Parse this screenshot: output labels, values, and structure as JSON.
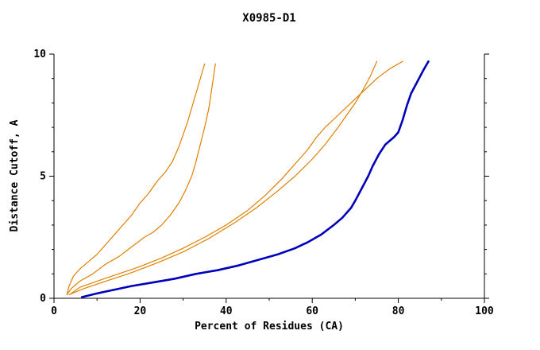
{
  "chart_data": {
    "type": "line",
    "title": "X0985-D1",
    "xlabel": "Percent of Residues (CA)",
    "ylabel": "Distance Cutoff, A",
    "xlim": [
      0,
      100
    ],
    "ylim": [
      0,
      10
    ],
    "x_ticks": [
      0,
      20,
      40,
      60,
      80,
      100
    ],
    "x_ticks_minor": [
      10,
      30,
      50,
      70,
      90
    ],
    "y_ticks_major": [
      0,
      5,
      10
    ],
    "y_ticks_minor": [
      1,
      2,
      3,
      4,
      6,
      7,
      8,
      9
    ],
    "grid": false,
    "legend": "none",
    "colors": {
      "model_curve": "#e08000",
      "highlight_curve": "#0000bb",
      "axis": "#000000"
    },
    "series": [
      {
        "name": "orange-curve-1",
        "color": "#e08000",
        "width": 1.2,
        "points": [
          [
            3,
            0.15
          ],
          [
            3.5,
            0.5
          ],
          [
            4.5,
            0.9
          ],
          [
            6,
            1.2
          ],
          [
            8,
            1.5
          ],
          [
            10,
            1.8
          ],
          [
            12,
            2.2
          ],
          [
            14,
            2.6
          ],
          [
            16,
            3.0
          ],
          [
            18,
            3.4
          ],
          [
            20,
            3.9
          ],
          [
            22,
            4.3
          ],
          [
            24,
            4.8
          ],
          [
            26,
            5.2
          ],
          [
            27.5,
            5.6
          ],
          [
            29,
            6.2
          ],
          [
            30,
            6.7
          ],
          [
            31,
            7.2
          ],
          [
            32,
            7.8
          ],
          [
            33,
            8.4
          ],
          [
            34,
            9.0
          ],
          [
            35,
            9.6
          ]
        ]
      },
      {
        "name": "orange-curve-2",
        "color": "#e08000",
        "width": 1.2,
        "points": [
          [
            3,
            0.15
          ],
          [
            4,
            0.4
          ],
          [
            6,
            0.7
          ],
          [
            9,
            1.0
          ],
          [
            12,
            1.4
          ],
          [
            15,
            1.7
          ],
          [
            18,
            2.1
          ],
          [
            21,
            2.5
          ],
          [
            23,
            2.7
          ],
          [
            25,
            3.0
          ],
          [
            27,
            3.4
          ],
          [
            29,
            3.9
          ],
          [
            30.5,
            4.4
          ],
          [
            32,
            5.0
          ],
          [
            33,
            5.6
          ],
          [
            34,
            6.3
          ],
          [
            35,
            7.0
          ],
          [
            36,
            7.8
          ],
          [
            36.5,
            8.4
          ],
          [
            37,
            9.0
          ],
          [
            37.5,
            9.6
          ]
        ]
      },
      {
        "name": "orange-curve-3",
        "color": "#e08000",
        "width": 1.2,
        "points": [
          [
            3.5,
            0.15
          ],
          [
            7,
            0.4
          ],
          [
            12,
            0.7
          ],
          [
            18,
            1.05
          ],
          [
            24,
            1.45
          ],
          [
            30,
            1.9
          ],
          [
            36,
            2.45
          ],
          [
            42,
            3.1
          ],
          [
            47,
            3.7
          ],
          [
            52,
            4.4
          ],
          [
            56,
            5.0
          ],
          [
            60,
            5.7
          ],
          [
            63,
            6.3
          ],
          [
            66,
            7.0
          ],
          [
            68,
            7.5
          ],
          [
            70,
            8.0
          ],
          [
            72,
            8.6
          ],
          [
            73.5,
            9.1
          ],
          [
            75,
            9.7
          ]
        ]
      },
      {
        "name": "orange-curve-4",
        "color": "#e08000",
        "width": 1.2,
        "points": [
          [
            4,
            0.2
          ],
          [
            6,
            0.45
          ],
          [
            10,
            0.7
          ],
          [
            15,
            1.0
          ],
          [
            20,
            1.3
          ],
          [
            25,
            1.65
          ],
          [
            30,
            2.05
          ],
          [
            35,
            2.5
          ],
          [
            40,
            3.0
          ],
          [
            45,
            3.6
          ],
          [
            49,
            4.2
          ],
          [
            53,
            4.9
          ],
          [
            56,
            5.5
          ],
          [
            59,
            6.1
          ],
          [
            61,
            6.6
          ],
          [
            63,
            7.0
          ],
          [
            66,
            7.5
          ],
          [
            69,
            8.0
          ],
          [
            72,
            8.5
          ],
          [
            75,
            9.0
          ],
          [
            78,
            9.4
          ],
          [
            81,
            9.7
          ]
        ]
      },
      {
        "name": "blue-highlight-curve",
        "color": "#0000bb",
        "width": 2.6,
        "points": [
          [
            6.5,
            0.05
          ],
          [
            10,
            0.2
          ],
          [
            14,
            0.35
          ],
          [
            18,
            0.5
          ],
          [
            23,
            0.65
          ],
          [
            28,
            0.8
          ],
          [
            33,
            1.0
          ],
          [
            38,
            1.15
          ],
          [
            43,
            1.35
          ],
          [
            48,
            1.6
          ],
          [
            52,
            1.8
          ],
          [
            56,
            2.05
          ],
          [
            59,
            2.3
          ],
          [
            62,
            2.6
          ],
          [
            65,
            3.0
          ],
          [
            67,
            3.3
          ],
          [
            69,
            3.7
          ],
          [
            70,
            4.0
          ],
          [
            71.5,
            4.5
          ],
          [
            73,
            5.0
          ],
          [
            74,
            5.4
          ],
          [
            75.5,
            5.9
          ],
          [
            77,
            6.3
          ],
          [
            79,
            6.6
          ],
          [
            80,
            6.8
          ],
          [
            81,
            7.3
          ],
          [
            82,
            7.9
          ],
          [
            83,
            8.4
          ],
          [
            84.5,
            8.9
          ],
          [
            86,
            9.4
          ],
          [
            87,
            9.7
          ]
        ]
      }
    ]
  }
}
